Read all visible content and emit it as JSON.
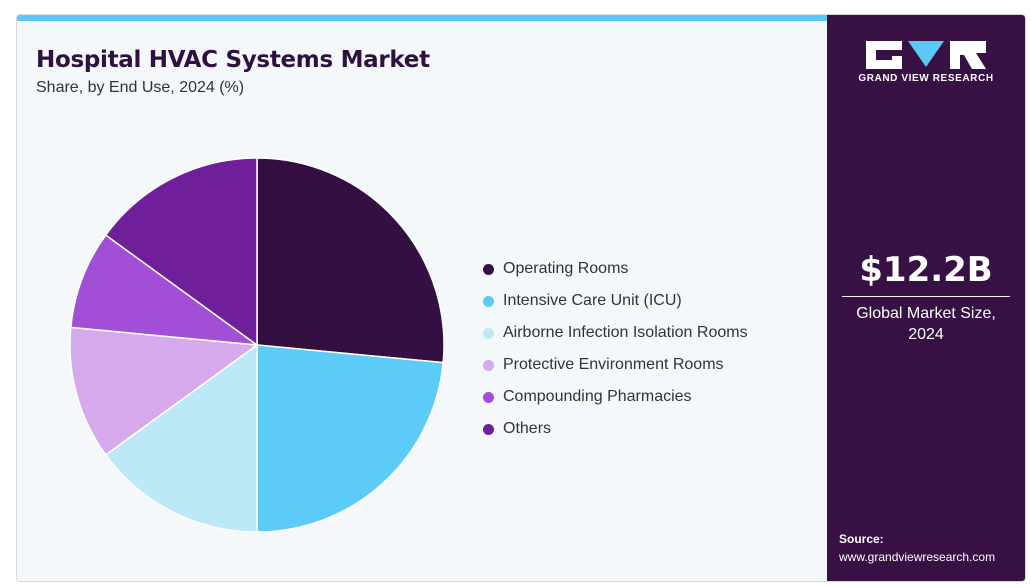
{
  "header": {
    "title": "Hospital HVAC Systems Market",
    "subtitle": "Share, by End Use, 2024 (%)"
  },
  "chart_data": {
    "type": "pie",
    "title": "Hospital HVAC Systems Market",
    "subtitle": "Share, by End Use, 2024 (%)",
    "categories": [
      "Operating Rooms",
      "Intensive Care Unit (ICU)",
      "Airborne Infection Isolation Rooms",
      "Protective Environment Rooms",
      "Compounding Pharmacies",
      "Others"
    ],
    "values": [
      26.5,
      23.5,
      15.0,
      11.5,
      8.5,
      15.0
    ],
    "colors": [
      "#341042",
      "#5ccbf7",
      "#bde8f8",
      "#d5a9ec",
      "#a24ed6",
      "#6f1f9a"
    ],
    "legend": "right",
    "slice_border_color": "#ffffff"
  },
  "sidebar": {
    "logo_text": "GRAND VIEW RESEARCH",
    "market_value": "$12.2B",
    "market_label_line1": "Global Market Size,",
    "market_label_line2": "2024",
    "source_label": "Source:",
    "source_url": "www.grandviewresearch.com"
  },
  "theme": {
    "sidebar_bg": "#371144",
    "accent": "#5bc8f5",
    "title_color": "#2e1140"
  }
}
